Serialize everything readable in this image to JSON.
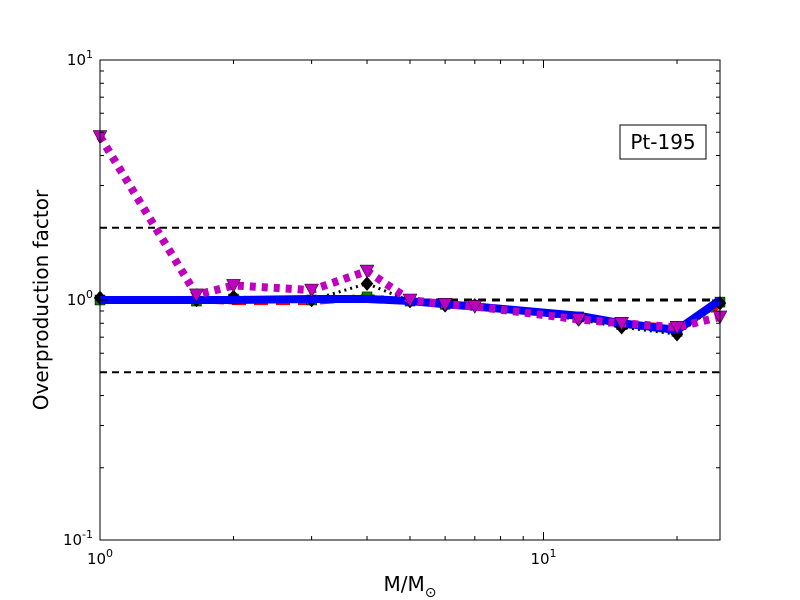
{
  "chart_data": {
    "type": "line",
    "title": "",
    "xlabel": "M/M",
    "xlabel_sub": "⊙",
    "ylabel": "Overproduction factor",
    "xscale": "log",
    "yscale": "log",
    "xlim": [
      1,
      25
    ],
    "ylim": [
      0.1,
      10
    ],
    "grid": false,
    "x_ticks": [
      {
        "value": 1,
        "base": "10",
        "exp": "0"
      },
      {
        "value": 10,
        "base": "10",
        "exp": "1"
      }
    ],
    "y_ticks": [
      {
        "value": 0.1,
        "base": "10",
        "exp": "-1"
      },
      {
        "value": 1,
        "base": "10",
        "exp": "0"
      },
      {
        "value": 10,
        "base": "10",
        "exp": "1"
      }
    ],
    "annotation": "Pt-195",
    "reference_lines": [
      2.0,
      1.0,
      0.5
    ],
    "series": [
      {
        "color": "#ff0000",
        "style": "dashed",
        "width": 6,
        "marker": "none",
        "x": [
          1,
          1.65,
          2,
          3,
          4,
          5,
          6,
          7,
          12,
          15,
          20,
          25
        ],
        "y": [
          1.0,
          1.0,
          0.98,
          0.98,
          1.02,
          0.99,
          0.96,
          0.95,
          0.86,
          0.8,
          0.77,
          0.95
        ]
      },
      {
        "color": "#008000",
        "style": "dashdot",
        "width": 6,
        "marker": "square",
        "x": [
          1,
          1.65,
          2,
          3,
          4,
          5,
          6,
          7,
          12,
          15,
          20,
          25
        ],
        "y": [
          1.0,
          0.99,
          1.01,
          1.0,
          1.03,
          0.99,
          0.96,
          0.95,
          0.85,
          0.79,
          0.74,
          0.98
        ]
      },
      {
        "color": "#000000",
        "style": "dotted",
        "width": 3,
        "marker": "diamond",
        "x": [
          1,
          1.65,
          2,
          3,
          4,
          5,
          6,
          7,
          12,
          15,
          20,
          25
        ],
        "y": [
          1.02,
          1.0,
          1.03,
          1.0,
          1.17,
          0.99,
          0.95,
          0.95,
          0.83,
          0.77,
          0.72,
          0.97
        ]
      },
      {
        "color": "#0000ff",
        "style": "solid",
        "width": 8,
        "marker": "none",
        "x": [
          1,
          1.65,
          2,
          3,
          4,
          5,
          6,
          7,
          12,
          15,
          20,
          25
        ],
        "y": [
          1.0,
          1.0,
          1.0,
          1.01,
          1.01,
          0.99,
          0.96,
          0.94,
          0.86,
          0.8,
          0.75,
          1.0
        ]
      },
      {
        "color": "#bf00bf",
        "style": "dotted",
        "width": 8,
        "marker": "triangle-down",
        "x": [
          1,
          1.65,
          2,
          3,
          4,
          5,
          6,
          7,
          12,
          15,
          20,
          25
        ],
        "y": [
          4.8,
          1.05,
          1.15,
          1.1,
          1.32,
          1.0,
          0.96,
          0.94,
          0.83,
          0.8,
          0.77,
          0.85
        ]
      }
    ]
  }
}
